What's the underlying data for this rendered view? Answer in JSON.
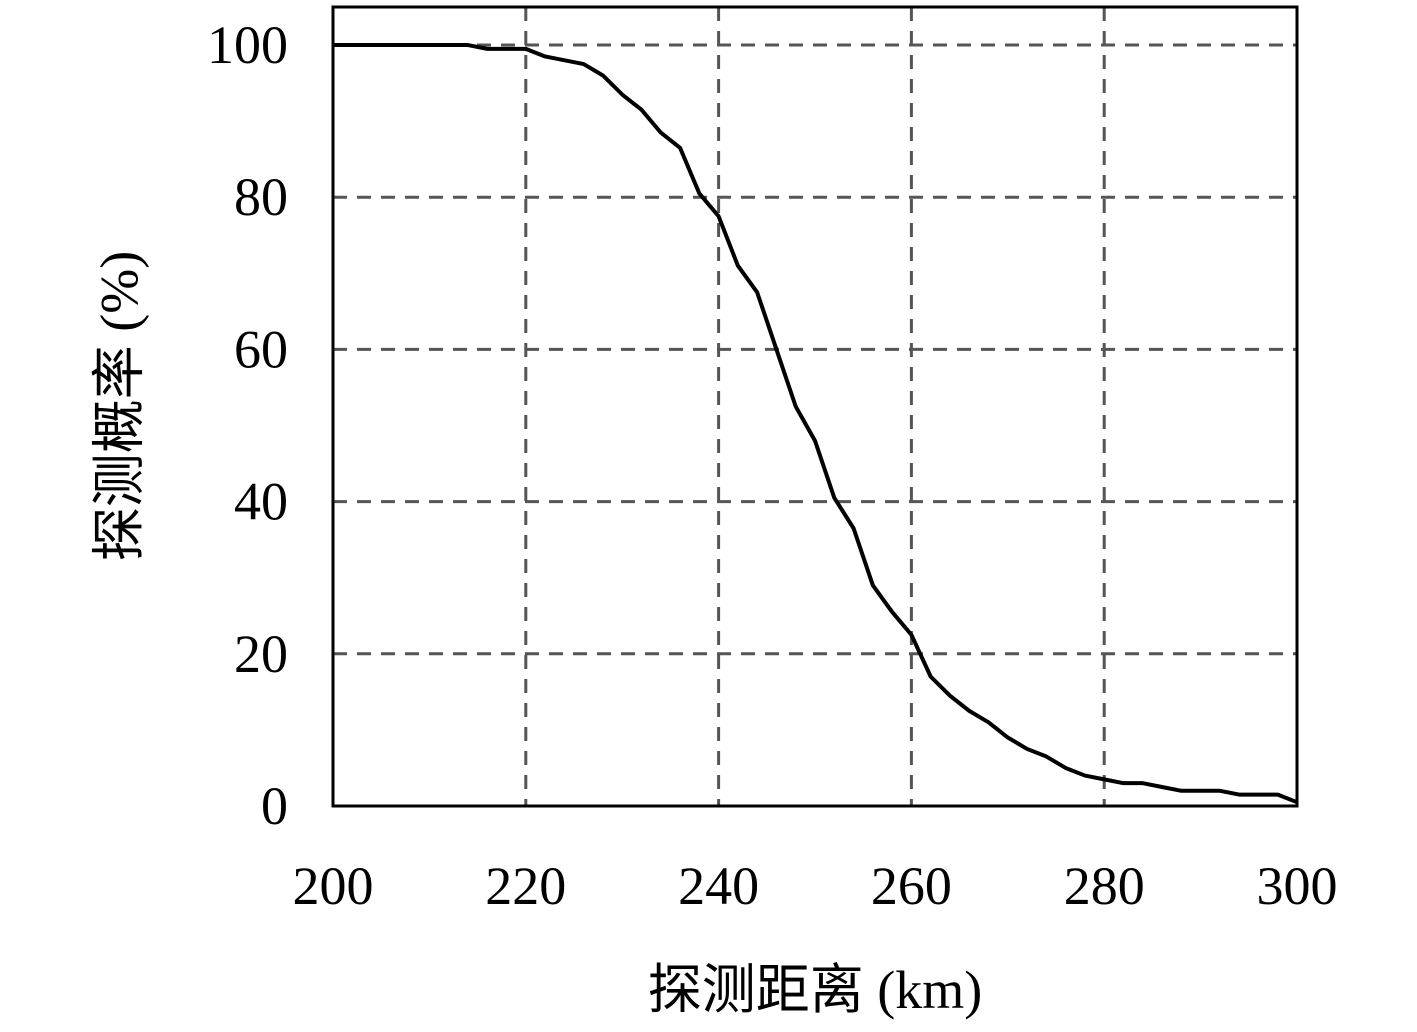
{
  "chart_data": {
    "type": "line",
    "xlabel": "探测距离 (km)",
    "ylabel": "探测概率 (%)",
    "x": [
      200,
      214,
      216,
      220,
      222,
      226,
      228,
      230,
      232,
      234,
      236,
      238,
      240,
      242,
      244,
      246,
      248,
      250,
      252,
      254,
      256,
      258,
      260,
      262,
      264,
      266,
      268,
      270,
      272,
      274,
      276,
      278,
      280,
      282,
      284,
      286,
      288,
      290,
      292,
      294,
      296,
      298,
      300
    ],
    "series": [
      {
        "color": "#000000",
        "values": [
          100,
          100,
          99.5,
          99.5,
          98.5,
          97.5,
          96,
          93.5,
          91.5,
          88.5,
          86.5,
          80.5,
          77.5,
          71,
          67.5,
          60,
          52.5,
          48,
          40.5,
          36.5,
          29,
          25.5,
          22.5,
          17,
          14.5,
          12.5,
          11,
          9,
          7.5,
          6.5,
          5,
          4,
          3.5,
          3,
          3,
          2.5,
          2,
          2,
          2,
          1.5,
          1.5,
          1.5,
          0.5
        ]
      }
    ],
    "xlim": [
      200,
      300
    ],
    "xticks": [
      200,
      220,
      240,
      260,
      280,
      300
    ],
    "ylim": [
      0,
      105
    ],
    "yticks": [
      0,
      20,
      40,
      60,
      80,
      100
    ],
    "grid": true
  }
}
